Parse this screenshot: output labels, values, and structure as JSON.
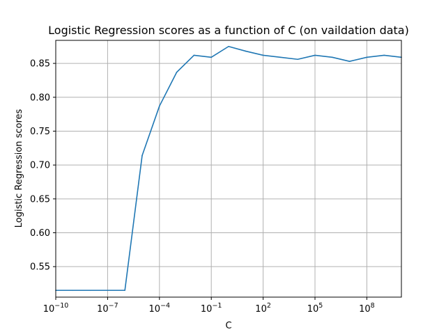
{
  "chart_data": {
    "type": "line",
    "title": "Logistic Regression scores as a function of C (on vaildation data)",
    "xlabel": "C",
    "ylabel": "Logistic Regression scores",
    "x_scale": "log",
    "xlim": [
      1e-10,
      10000000000.0
    ],
    "ylim": [
      0.505,
      0.884
    ],
    "grid": true,
    "line_color": "#1f77b4",
    "grid_color": "#b0b0b0",
    "x_ticks": [
      {
        "value": 1e-10,
        "base": "10",
        "exp": "−10"
      },
      {
        "value": 1e-07,
        "base": "10",
        "exp": "−7"
      },
      {
        "value": 0.0001,
        "base": "10",
        "exp": "−4"
      },
      {
        "value": 0.1,
        "base": "10",
        "exp": "−1"
      },
      {
        "value": 100.0,
        "base": "10",
        "exp": "2"
      },
      {
        "value": 100000.0,
        "base": "10",
        "exp": "5"
      },
      {
        "value": 100000000.0,
        "base": "10",
        "exp": "8"
      }
    ],
    "y_ticks": [
      {
        "value": 0.55,
        "label": "0.55"
      },
      {
        "value": 0.6,
        "label": "0.60"
      },
      {
        "value": 0.65,
        "label": "0.65"
      },
      {
        "value": 0.7,
        "label": "0.70"
      },
      {
        "value": 0.75,
        "label": "0.75"
      },
      {
        "value": 0.8,
        "label": "0.80"
      },
      {
        "value": 0.85,
        "label": "0.85"
      }
    ],
    "series": [
      {
        "x": [
          1e-10,
          1e-09,
          1e-08,
          1e-07,
          1e-06,
          1e-05,
          0.0001,
          0.001,
          0.01,
          0.1,
          1,
          10.0,
          100.0,
          1000.0,
          10000.0,
          100000.0,
          1000000.0,
          10000000.0,
          100000000.0,
          1000000000.0,
          10000000000.0
        ],
        "y": [
          0.515,
          0.515,
          0.515,
          0.515,
          0.515,
          0.714,
          0.787,
          0.837,
          0.862,
          0.859,
          0.875,
          0.868,
          0.862,
          0.859,
          0.856,
          0.862,
          0.859,
          0.853,
          0.859,
          0.862,
          0.859
        ]
      }
    ]
  }
}
